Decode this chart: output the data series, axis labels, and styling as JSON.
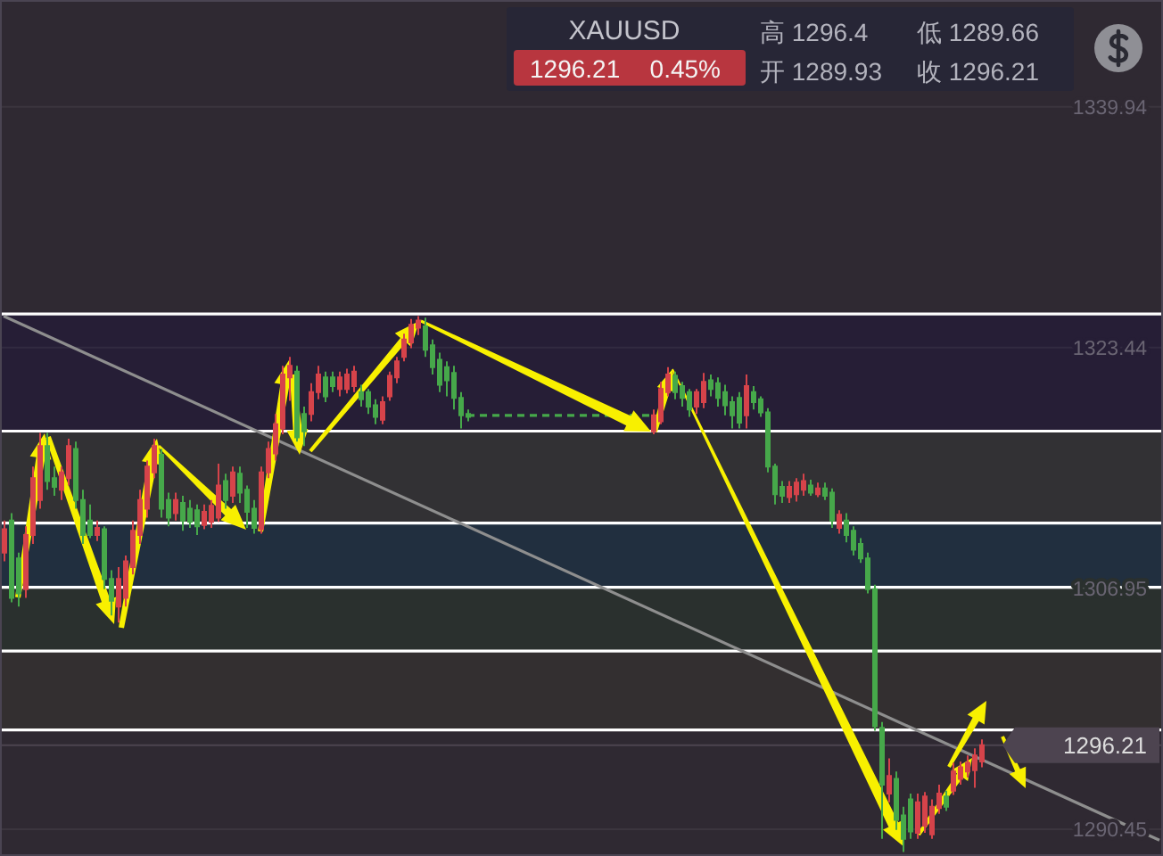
{
  "chart_data": {
    "type": "candlestick",
    "title": "XAUUSD",
    "annotations": [
      "1296.21",
      "0.45%",
      "高 1296.4",
      "低 1289.66",
      "开 1289.93",
      "收 1296.21"
    ],
    "categories": [
      null,
      null,
      null,
      null,
      null,
      null,
      null,
      null,
      null,
      null,
      null,
      null,
      null,
      null,
      null,
      null,
      null,
      null,
      null,
      null,
      null,
      null,
      null,
      null,
      null,
      null,
      null,
      null,
      null,
      null,
      null,
      null,
      null,
      null,
      null,
      null,
      null,
      null,
      null,
      null,
      null,
      null,
      null,
      null,
      null,
      null,
      null,
      null,
      null,
      null,
      null,
      null,
      null,
      null,
      null,
      null,
      null,
      null,
      null,
      null,
      null,
      null,
      null,
      null,
      null,
      null,
      null,
      null,
      null,
      null,
      null,
      null,
      null,
      null,
      null,
      null,
      null,
      null,
      null,
      null,
      null,
      null,
      null,
      null,
      null,
      null,
      null,
      null,
      null,
      null,
      null,
      null,
      null,
      null,
      null,
      null,
      null,
      null,
      null,
      null,
      null,
      null,
      null,
      null,
      null,
      null,
      null,
      null,
      null,
      null,
      null,
      null,
      null,
      null,
      null,
      null,
      null,
      null,
      null,
      null,
      null,
      null,
      null,
      null,
      null,
      null,
      null,
      null,
      null,
      null,
      null,
      null,
      null,
      null,
      null,
      null,
      null,
      null,
      null,
      null,
      null,
      null,
      null,
      null,
      null,
      null,
      null,
      null,
      null,
      null,
      null,
      null,
      null,
      null,
      null,
      null,
      null,
      null,
      null,
      null,
      null,
      null,
      null
    ],
    "ohlc": [
      [
        1309.4,
        1311.6,
        1308.8,
        1311.0
      ],
      [
        1311.6,
        1312.1,
        1306.0,
        1306.3
      ],
      [
        1309.0,
        1309.4,
        1305.7,
        1306.6
      ],
      [
        1306.9,
        1311.2,
        1306.3,
        1310.6
      ],
      [
        1310.6,
        1315.3,
        1310.0,
        1314.5
      ],
      [
        1313.0,
        1317.6,
        1312.4,
        1316.7
      ],
      [
        1316.7,
        1317.6,
        1313.7,
        1314.3
      ],
      [
        1314.5,
        1315.3,
        1313.3,
        1313.9
      ],
      [
        1313.7,
        1315.3,
        1313.0,
        1314.9
      ],
      [
        1314.5,
        1317.2,
        1314.0,
        1316.7
      ],
      [
        1316.5,
        1317.0,
        1312.4,
        1313.0
      ],
      [
        1313.0,
        1313.7,
        1310.0,
        1310.6
      ],
      [
        1311.6,
        1312.7,
        1310.4,
        1310.6
      ],
      [
        1310.6,
        1311.6,
        1310.2,
        1311.1
      ],
      [
        1311.0,
        1311.2,
        1306.9,
        1307.6
      ],
      [
        1307.6,
        1308.2,
        1305.1,
        1306.1
      ],
      [
        1305.7,
        1308.4,
        1304.6,
        1307.6
      ],
      [
        1306.3,
        1309.2,
        1305.7,
        1308.8
      ],
      [
        1308.4,
        1311.6,
        1307.9,
        1310.9
      ],
      [
        1310.6,
        1313.7,
        1310.0,
        1313.0
      ],
      [
        1312.4,
        1315.7,
        1311.8,
        1315.3
      ],
      [
        1314.9,
        1317.2,
        1314.5,
        1316.7
      ],
      [
        1316.1,
        1316.5,
        1311.8,
        1312.4
      ],
      [
        1313.0,
        1313.5,
        1311.2,
        1311.8
      ],
      [
        1312.1,
        1313.5,
        1311.6,
        1313.0
      ],
      [
        1312.8,
        1313.3,
        1310.9,
        1311.6
      ],
      [
        1312.4,
        1313.0,
        1311.1,
        1311.5
      ],
      [
        1312.3,
        1312.7,
        1310.6,
        1311.2
      ],
      [
        1311.3,
        1312.7,
        1311.0,
        1312.2
      ],
      [
        1311.5,
        1313.0,
        1311.1,
        1312.6
      ],
      [
        1311.8,
        1315.5,
        1311.5,
        1314.0
      ],
      [
        1314.3,
        1314.8,
        1312.4,
        1313.0
      ],
      [
        1313.3,
        1315.3,
        1312.8,
        1314.9
      ],
      [
        1314.8,
        1315.3,
        1312.8,
        1313.5
      ],
      [
        1313.7,
        1314.0,
        1311.1,
        1312.2
      ],
      [
        1312.4,
        1313.0,
        1310.7,
        1311.1
      ],
      [
        1311.0,
        1315.3,
        1310.7,
        1314.9
      ],
      [
        1314.9,
        1317.0,
        1314.5,
        1316.5
      ],
      [
        1316.2,
        1318.9,
        1315.7,
        1318.2
      ],
      [
        1317.9,
        1322.2,
        1317.5,
        1321.6
      ],
      [
        1321.4,
        1322.8,
        1319.8,
        1322.2
      ],
      [
        1321.8,
        1322.2,
        1317.0,
        1317.3
      ],
      [
        1318.9,
        1319.4,
        1316.7,
        1317.7
      ],
      [
        1318.9,
        1321.0,
        1318.4,
        1320.4
      ],
      [
        1320.4,
        1322.2,
        1319.9,
        1321.6
      ],
      [
        1321.4,
        1321.8,
        1319.7,
        1320.1
      ],
      [
        1321.4,
        1321.8,
        1320.4,
        1320.8
      ],
      [
        1320.6,
        1321.8,
        1320.1,
        1321.4
      ],
      [
        1320.6,
        1322.0,
        1320.3,
        1321.6
      ],
      [
        1320.8,
        1322.2,
        1320.4,
        1321.8
      ],
      [
        1320.4,
        1320.9,
        1319.4,
        1319.9
      ],
      [
        1320.4,
        1320.6,
        1318.9,
        1319.4
      ],
      [
        1319.5,
        1319.9,
        1318.2,
        1318.7
      ],
      [
        1318.5,
        1320.1,
        1318.2,
        1319.7
      ],
      [
        1320.1,
        1321.8,
        1319.8,
        1321.5
      ],
      [
        1321.4,
        1322.8,
        1321.0,
        1322.5
      ],
      [
        1322.8,
        1324.4,
        1322.5,
        1324.0
      ],
      [
        1323.8,
        1325.4,
        1323.4,
        1325.0
      ],
      [
        1324.8,
        1325.6,
        1324.3,
        1325.3
      ],
      [
        1324.9,
        1325.5,
        1322.8,
        1323.3
      ],
      [
        1323.6,
        1324.0,
        1321.6,
        1322.1
      ],
      [
        1322.6,
        1323.1,
        1320.4,
        1320.9
      ],
      [
        1322.1,
        1322.5,
        1320.1,
        1321.2
      ],
      [
        1321.7,
        1322.2,
        1319.2,
        1320.0
      ],
      [
        1320.0,
        1320.4,
        1317.9,
        1318.8
      ],
      [
        1318.9,
        1319.2,
        1318.4,
        1318.7
      ],
      null,
      null,
      null,
      null,
      null,
      null,
      null,
      null,
      null,
      null,
      null,
      null,
      null,
      null,
      null,
      null,
      null,
      null,
      null,
      null,
      null,
      null,
      null,
      null,
      null,
      [
        1317.7,
        1319.2,
        1317.5,
        1318.8
      ],
      [
        1318.4,
        1321.1,
        1318.2,
        1320.6
      ],
      [
        1320.4,
        1322.1,
        1320.1,
        1321.6
      ],
      [
        1321.5,
        1321.8,
        1319.9,
        1320.4
      ],
      [
        1320.8,
        1321.1,
        1319.4,
        1320.0
      ],
      [
        1320.4,
        1320.6,
        1318.7,
        1319.2
      ],
      [
        1319.4,
        1320.6,
        1318.9,
        1320.4
      ],
      [
        1319.7,
        1321.7,
        1319.3,
        1321.1
      ],
      [
        1321.2,
        1321.6,
        1320.1,
        1320.6
      ],
      [
        1321.0,
        1321.4,
        1319.4,
        1320.0
      ],
      [
        1320.4,
        1320.9,
        1318.8,
        1319.5
      ],
      [
        1319.7,
        1320.1,
        1317.9,
        1318.8
      ],
      [
        1320.0,
        1320.4,
        1317.9,
        1318.3
      ],
      [
        1318.8,
        1321.6,
        1317.9,
        1320.8
      ],
      [
        1320.4,
        1320.8,
        1319.2,
        1319.7
      ],
      [
        1319.9,
        1320.1,
        1318.7,
        1319.0
      ],
      [
        1319.0,
        1319.3,
        1314.9,
        1315.3
      ],
      [
        1315.3,
        1315.5,
        1312.7,
        1313.4
      ],
      [
        1313.9,
        1314.3,
        1312.8,
        1313.3
      ],
      [
        1313.2,
        1314.3,
        1312.8,
        1313.9
      ],
      [
        1313.4,
        1314.5,
        1312.9,
        1314.2
      ],
      [
        1313.7,
        1314.8,
        1313.3,
        1314.3
      ],
      [
        1314.0,
        1314.4,
        1313.3,
        1313.5
      ],
      [
        1313.4,
        1314.2,
        1313.2,
        1313.8
      ],
      [
        1313.8,
        1314.2,
        1313.0,
        1313.3
      ],
      [
        1313.5,
        1313.8,
        1311.1,
        1311.6
      ],
      [
        1311.1,
        1312.3,
        1310.7,
        1312.0
      ],
      [
        1311.6,
        1312.1,
        1310.1,
        1310.6
      ],
      [
        1310.9,
        1311.2,
        1309.2,
        1309.6
      ],
      [
        1310.0,
        1310.4,
        1308.7,
        1309.0
      ],
      [
        1309.0,
        1309.4,
        1306.6,
        1306.9
      ],
      [
        1306.9,
        1307.2,
        1297.2,
        1297.5
      ],
      [
        1297.4,
        1297.8,
        1289.8,
        1293.5
      ],
      [
        1292.9,
        1295.3,
        1292.3,
        1294.1
      ],
      [
        1293.9,
        1294.4,
        1290.4,
        1291.1
      ],
      [
        1291.4,
        1292.0,
        1288.9,
        1289.8
      ],
      [
        1292.5,
        1292.9,
        1289.8,
        1290.3
      ],
      [
        1290.2,
        1292.9,
        1289.8,
        1292.3
      ],
      [
        1290.7,
        1293.0,
        1290.2,
        1292.7
      ],
      [
        1290.1,
        1292.5,
        1289.8,
        1292.0
      ],
      [
        1291.9,
        1293.5,
        1291.5,
        1292.9
      ],
      [
        1292.7,
        1293.1,
        1291.7,
        1292.0
      ],
      [
        1293.1,
        1295.0,
        1292.8,
        1294.4
      ],
      [
        1293.9,
        1295.1,
        1293.5,
        1294.7
      ],
      [
        1294.4,
        1295.5,
        1294.0,
        1295.0
      ],
      [
        1294.5,
        1296.0,
        1293.3,
        1295.5
      ],
      [
        1295.1,
        1296.6,
        1294.7,
        1296.21
      ],
      null,
      null,
      null,
      null,
      null,
      null,
      null,
      null,
      null,
      null,
      null,
      null,
      null,
      null,
      null,
      null,
      null,
      null,
      null,
      null,
      null,
      null,
      null,
      null,
      null
    ],
    "colors": [
      "#d6434a",
      "#46a84a",
      "#46a84a",
      "#d6434a",
      "#d6434a",
      "#d6434a",
      "#46a84a",
      "#46a84a",
      "#d6434a",
      "#d6434a",
      "#46a84a",
      "#46a84a",
      "#46a84a",
      "#d6434a",
      "#46a84a",
      "#46a84a",
      "#d6434a",
      "#d6434a",
      "#d6434a",
      "#d6434a",
      "#d6434a",
      "#d6434a",
      "#46a84a",
      "#46a84a",
      "#d6434a",
      "#46a84a",
      "#46a84a",
      "#46a84a",
      "#d6434a",
      "#d6434a",
      "#d6434a",
      "#46a84a",
      "#d6434a",
      "#46a84a",
      "#46a84a",
      "#46a84a",
      "#d6434a",
      "#d6434a",
      "#d6434a",
      "#d6434a",
      "#d6434a",
      "#46a84a",
      "#46a84a",
      "#d6434a",
      "#d6434a",
      "#46a84a",
      "#46a84a",
      "#d6434a",
      "#d6434a",
      "#d6434a",
      "#46a84a",
      "#46a84a",
      "#46a84a",
      "#d6434a",
      "#d6434a",
      "#d6434a",
      "#d6434a",
      "#d6434a",
      "#d6434a",
      "#46a84a",
      "#46a84a",
      "#46a84a",
      "#46a84a",
      "#46a84a",
      "#46a84a",
      "#46a84a",
      null,
      null,
      null,
      null,
      null,
      null,
      null,
      null,
      null,
      null,
      null,
      null,
      null,
      null,
      null,
      null,
      null,
      null,
      null,
      null,
      null,
      null,
      null,
      null,
      null,
      "#d6434a",
      "#d6434a",
      "#d6434a",
      "#46a84a",
      "#46a84a",
      "#46a84a",
      "#d6434a",
      "#d6434a",
      "#46a84a",
      "#46a84a",
      "#46a84a",
      "#46a84a",
      "#46a84a",
      "#d6434a",
      "#46a84a",
      "#46a84a",
      "#46a84a",
      "#46a84a",
      "#46a84a",
      "#d6434a",
      "#d6434a",
      "#d6434a",
      "#46a84a",
      "#d6434a",
      "#46a84a",
      "#46a84a",
      "#d6434a",
      "#46a84a",
      "#46a84a",
      "#46a84a",
      "#46a84a",
      "#46a84a",
      "#46a84a",
      "#d6434a",
      "#46a84a",
      "#46a84a",
      "#46a84a",
      "#d6434a",
      "#d6434a",
      "#d6434a",
      "#d6434a",
      "#46a84a",
      "#d6434a",
      "#d6434a",
      "#d6434a",
      "#d6434a",
      "#d6434a",
      null,
      null,
      null,
      null,
      null,
      null,
      null,
      null,
      null,
      null,
      null,
      null,
      null,
      null,
      null,
      null,
      null,
      null,
      null,
      null,
      null,
      null,
      null,
      null,
      null
    ],
    "series": [
      {
        "type": "line",
        "color": "#8e8e8e",
        "values": [
          1325.6,
          null,
          null,
          null,
          null,
          null,
          null,
          null,
          null,
          null,
          null,
          null,
          null,
          null,
          null,
          null,
          null,
          null,
          null,
          null,
          null,
          null,
          null,
          null,
          null,
          null,
          null,
          null,
          null,
          null,
          null,
          null,
          null,
          null,
          null,
          null,
          null,
          null,
          null,
          null,
          null,
          null,
          null,
          null,
          null,
          null,
          null,
          null,
          null,
          null,
          null,
          null,
          null,
          null,
          null,
          null,
          null,
          null,
          null,
          null,
          null,
          null,
          null,
          null,
          null,
          null,
          null,
          null,
          null,
          null,
          null,
          null,
          null,
          null,
          null,
          null,
          null,
          null,
          null,
          null,
          null,
          null,
          null,
          null,
          null,
          null,
          null,
          null,
          null,
          null,
          null,
          null,
          null,
          null,
          null,
          null,
          null,
          null,
          null,
          null,
          null,
          null,
          null,
          null,
          null,
          null,
          null,
          null,
          null,
          null,
          null,
          null,
          null,
          null,
          null,
          null,
          null,
          null,
          null,
          null,
          null,
          null,
          null,
          null,
          null,
          null,
          null,
          null,
          null,
          null,
          null,
          null,
          null,
          null,
          null,
          null,
          null,
          null,
          null,
          null,
          null,
          null,
          null,
          null,
          null,
          null,
          null,
          null,
          null,
          null,
          null,
          null,
          null,
          null,
          null,
          null,
          null,
          null,
          null,
          null,
          null,
          null,
          1289.7
        ]
      },
      {
        "type": "line",
        "color": "#46a84a",
        "line_style": "dashed",
        "values": [
          null,
          null,
          null,
          null,
          null,
          null,
          null,
          null,
          null,
          null,
          null,
          null,
          null,
          null,
          null,
          null,
          null,
          null,
          null,
          null,
          null,
          null,
          null,
          null,
          null,
          null,
          null,
          null,
          null,
          null,
          null,
          null,
          null,
          null,
          null,
          null,
          null,
          null,
          null,
          null,
          null,
          null,
          null,
          null,
          null,
          null,
          null,
          null,
          null,
          null,
          null,
          null,
          null,
          null,
          null,
          null,
          null,
          null,
          null,
          null,
          null,
          null,
          null,
          null,
          null,
          1318.8,
          null,
          null,
          null,
          null,
          null,
          null,
          null,
          null,
          null,
          null,
          null,
          null,
          null,
          null,
          null,
          null,
          null,
          null,
          null,
          null,
          null,
          null,
          null,
          null,
          null,
          1318.8,
          null,
          null,
          null,
          null,
          null,
          null,
          null,
          null,
          null,
          null,
          null,
          null,
          null,
          null,
          null,
          null,
          null,
          null,
          null,
          null,
          null,
          null,
          null,
          null,
          null,
          null,
          null,
          null,
          null,
          null,
          null,
          null,
          null,
          null,
          null,
          null,
          null,
          null,
          null,
          null,
          null,
          null,
          null,
          null,
          null,
          null,
          null,
          null,
          null,
          null,
          null,
          null,
          null,
          null,
          null,
          null,
          null,
          null,
          null,
          null,
          null,
          null,
          null,
          null,
          null,
          null,
          null,
          null,
          null,
          null,
          null
        ]
      }
    ],
    "ylim": [
      1288.62,
      1347.25
    ],
    "yticks": [
      1290.45,
      1306.95,
      1323.44,
      1339.94
    ],
    "grid": "y",
    "bands": [
      {
        "axis": "y",
        "from": 1317.72,
        "to": 1325.75,
        "color": "#261e36"
      },
      {
        "axis": "y",
        "from": 1311.42,
        "to": 1317.72,
        "color": "#323134"
      },
      {
        "axis": "y",
        "from": 1307.02,
        "to": 1311.42,
        "color": "#212f3f"
      },
      {
        "axis": "y",
        "from": 1302.66,
        "to": 1307.02,
        "color": "#2a302e"
      },
      {
        "axis": "y",
        "from": 1297.25,
        "to": 1302.66,
        "color": "#332f30"
      }
    ],
    "ref_lines": [
      {
        "axis": "y",
        "value": 1325.75,
        "color": "#ffffff"
      },
      {
        "axis": "y",
        "value": 1317.72,
        "color": "#ffffff"
      },
      {
        "axis": "y",
        "value": 1311.42,
        "color": "#ffffff"
      },
      {
        "axis": "y",
        "value": 1307.02,
        "color": "#ffffff"
      },
      {
        "axis": "y",
        "value": 1302.66,
        "color": "#ffffff"
      },
      {
        "axis": "y",
        "value": 1297.25,
        "color": "#ffffff"
      },
      {
        "axis": "y",
        "value": 1296.21,
        "label": "1296.21",
        "color": "#4d4450"
      }
    ]
  }
}
